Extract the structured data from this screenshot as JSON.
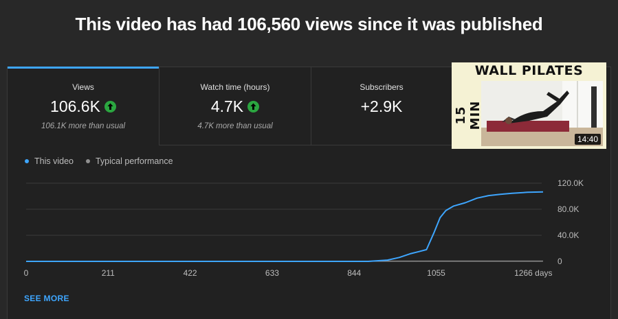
{
  "headline": "This video has had 106,560 views since it was published",
  "tabs": [
    {
      "label": "Views",
      "value": "106.6K",
      "trend": "up",
      "note": "106.1K more than usual",
      "selected": true
    },
    {
      "label": "Watch time (hours)",
      "value": "4.7K",
      "trend": "up",
      "note": "4.7K more than usual",
      "selected": false
    },
    {
      "label": "Subscribers",
      "value": "+2.9K",
      "trend": "",
      "note": "",
      "selected": false
    }
  ],
  "thumbnail": {
    "title": "WALL PILATES",
    "side_text": "15 MIN",
    "duration": "14:40"
  },
  "legend": [
    {
      "label": "This video",
      "color": "#3ea6ff"
    },
    {
      "label": "Typical performance",
      "color": "#909090"
    }
  ],
  "see_more": "SEE MORE",
  "colors": {
    "accent": "#3ea6ff",
    "positive": "#2ba640",
    "background": "#282828"
  },
  "chart_data": {
    "type": "line",
    "title": "",
    "xlabel": "days",
    "ylabel": "",
    "x_ticks": [
      "0",
      "211",
      "422",
      "633",
      "844",
      "1055",
      "1266 days"
    ],
    "y_ticks": [
      "0",
      "40.0K",
      "80.0K",
      "120.0K"
    ],
    "xlim": [
      0,
      1330
    ],
    "ylim": [
      0,
      120000
    ],
    "grid": true,
    "legend_position": "top-left",
    "series": [
      {
        "name": "This video",
        "color": "#3ea6ff",
        "x": [
          0,
          880,
          930,
          960,
          990,
          1010,
          1030,
          1050,
          1065,
          1080,
          1100,
          1130,
          1160,
          1190,
          1220,
          1250,
          1290,
          1330
        ],
        "y": [
          0,
          0,
          2000,
          6000,
          12000,
          15000,
          18000,
          45000,
          67000,
          78000,
          85000,
          90000,
          97000,
          101000,
          103000,
          104500,
          106000,
          106600
        ]
      },
      {
        "name": "Typical performance",
        "color": "#909090",
        "x": [
          0,
          1330
        ],
        "y": [
          0,
          400
        ]
      }
    ]
  }
}
